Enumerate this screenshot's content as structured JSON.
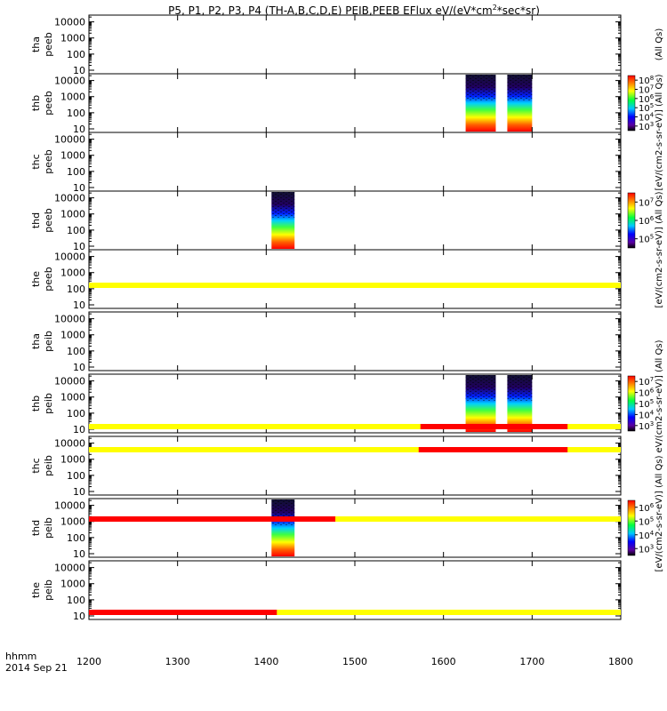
{
  "title": "P5, P1, P2, P3, P4 (TH-A,B,C,D,E) PEIB,PEEB EFlux eV/(eV*cm",
  "title_sup": "2",
  "title_tail": "*sec*sr)",
  "colors": {
    "red": "#ff0000",
    "yellow": "#ffff00",
    "black": "#000000",
    "white": "#ffffff"
  },
  "chart_data": {
    "type": "heatmap",
    "x_label_line1": "hhmm",
    "x_label_line2": "2014 Sep 21",
    "xlim": [
      1200,
      1800
    ],
    "x_ticks": [
      "1200",
      "1300",
      "1400",
      "1500",
      "1600",
      "1700",
      "1800"
    ],
    "y_ticks": [
      "10",
      "100",
      "1000",
      "10000"
    ],
    "ylim_log10": [
      0.78,
      4.42
    ],
    "panels": [
      {
        "id": "tha_peeb",
        "line1": "tha",
        "line2": "peeb",
        "bursts": []
      },
      {
        "id": "thb_peeb",
        "line1": "thb",
        "line2": "peeb",
        "bursts": [
          {
            "x0": 1625,
            "x1": 1659
          },
          {
            "x0": 1672,
            "x1": 1700
          }
        ]
      },
      {
        "id": "thc_peeb",
        "line1": "thc",
        "line2": "peeb",
        "bursts": []
      },
      {
        "id": "thd_peeb",
        "line1": "thd",
        "line2": "peeb",
        "bursts": [
          {
            "x0": 1406,
            "x1": 1432
          }
        ]
      },
      {
        "id": "the_peeb",
        "line1": "the",
        "line2": "peeb",
        "bursts": []
      },
      {
        "id": "tha_peib",
        "line1": "tha",
        "line2": "peib",
        "bursts": []
      },
      {
        "id": "thb_peib",
        "line1": "thb",
        "line2": "peib",
        "bursts": [
          {
            "x0": 1625,
            "x1": 1659
          },
          {
            "x0": 1672,
            "x1": 1700
          }
        ]
      },
      {
        "id": "thc_peib",
        "line1": "thc",
        "line2": "peib",
        "bursts": []
      },
      {
        "id": "thd_peib",
        "line1": "thd",
        "line2": "peib",
        "bursts": [
          {
            "x0": 1406,
            "x1": 1432
          }
        ]
      },
      {
        "id": "the_peib",
        "line1": "the",
        "line2": "peib",
        "bursts": []
      }
    ],
    "flag_bars": [
      {
        "after_panel": 4,
        "red": []
      },
      {
        "after_panel": 5,
        "red": [
          [
            1574,
            1740
          ]
        ]
      },
      {
        "after_panel": 6,
        "red": [
          [
            1572,
            1740
          ]
        ]
      },
      {
        "after_panel": 7,
        "red": [
          [
            1200,
            1478
          ]
        ]
      },
      {
        "after_panel": 8,
        "red": [
          [
            1200,
            1412
          ]
        ]
      }
    ],
    "colorbars": [
      {
        "panel": 1,
        "ticks": [
          {
            "base": "10",
            "exp": "3"
          },
          {
            "base": "10",
            "exp": "4"
          },
          {
            "base": "10",
            "exp": "5"
          },
          {
            "base": "10",
            "exp": "6"
          },
          {
            "base": "10",
            "exp": "7"
          },
          {
            "base": "10",
            "exp": "8"
          }
        ]
      },
      {
        "panel": 3,
        "ticks": [
          {
            "base": "10",
            "exp": "5"
          },
          {
            "base": "10",
            "exp": "6"
          },
          {
            "base": "10",
            "exp": "7"
          }
        ]
      },
      {
        "panel": 6,
        "ticks": [
          {
            "base": "10",
            "exp": "3"
          },
          {
            "base": "10",
            "exp": "4"
          },
          {
            "base": "10",
            "exp": "5"
          },
          {
            "base": "10",
            "exp": "6"
          },
          {
            "base": "10",
            "exp": "7"
          }
        ]
      },
      {
        "panel": 8,
        "ticks": [
          {
            "base": "10",
            "exp": "3"
          },
          {
            "base": "10",
            "exp": "4"
          },
          {
            "base": "10",
            "exp": "5"
          },
          {
            "base": "10",
            "exp": "6"
          }
        ]
      }
    ],
    "colorbar_labels": [
      {
        "text": "(All Qs)",
        "center_panel": 0
      },
      {
        "text": "[eV/(cm2-s-sr-eV)] (All Qs)",
        "center_panel": 1.5
      },
      {
        "text": "[eV/(cm2-s-sr-eV)] (All Qs)",
        "center_panel": 3.5
      },
      {
        "text": "eV/(cm2-s-sr-eV)] (All Qs)",
        "center_panel": 6
      },
      {
        "text": "[eV/(cm2-s-sr-eV)] (All Qs)",
        "center_panel": 8
      }
    ]
  }
}
